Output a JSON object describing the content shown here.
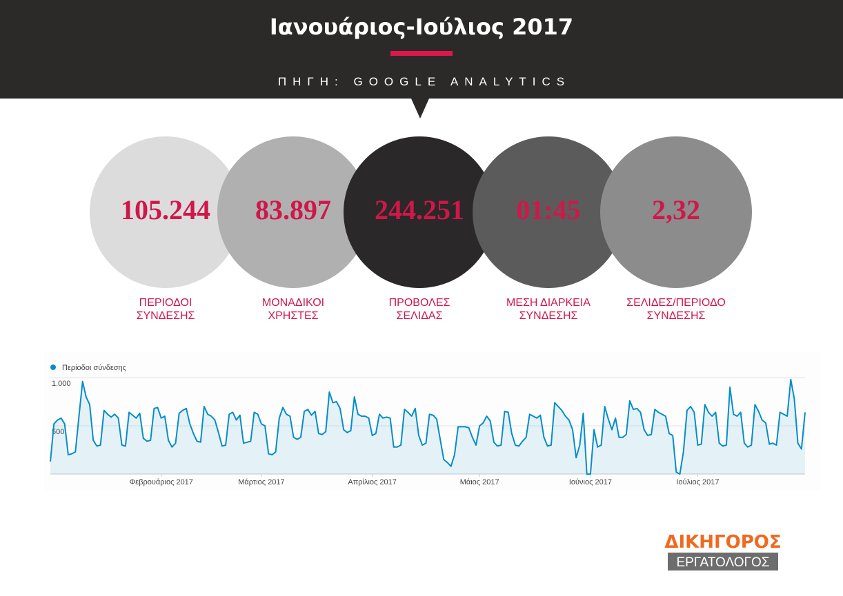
{
  "header": {
    "title": "Ιανουάριος-Ιούλιος 2017",
    "source": "ΠΗΓΗ: GOOGLE ANALYTICS"
  },
  "stats": [
    {
      "value": "105.244",
      "label": [
        "ΠΕΡΙΟΔΟΙ",
        "ΣΥΝΔΕΣΗΣ"
      ]
    },
    {
      "value": "83.897",
      "label": [
        "ΜΟΝΑΔΙΚΟΙ",
        "ΧΡΗΣΤΕΣ"
      ]
    },
    {
      "value": "244.251",
      "label": [
        "ΠΡΟΒΟΛΕΣ",
        "ΣΕΛΙΔΑΣ"
      ]
    },
    {
      "value": "01:45",
      "label": [
        "ΜΕΣΗ ΔΙΑΡΚΕΙΑ",
        "ΣΥΝΔΕΣΗΣ"
      ]
    },
    {
      "value": "2,32",
      "label": [
        "ΣΕΛΙΔΕΣ/ΠΕΡΙΟΔΟ",
        "ΣΥΝΔΕΣΗΣ"
      ]
    }
  ],
  "chart_data": {
    "type": "line",
    "series": [
      {
        "name": "Περίοδοι σύνδεσης",
        "color": "#058dc7",
        "values": [
          130,
          520,
          560,
          580,
          520,
          200,
          210,
          230,
          600,
          960,
          800,
          720,
          350,
          290,
          300,
          660,
          620,
          590,
          620,
          580,
          300,
          290,
          640,
          610,
          580,
          630,
          370,
          340,
          350,
          680,
          690,
          580,
          600,
          350,
          280,
          320,
          630,
          660,
          680,
          520,
          420,
          340,
          330,
          700,
          620,
          600,
          560,
          430,
          290,
          300,
          620,
          640,
          560,
          610,
          320,
          330,
          340,
          640,
          620,
          520,
          500,
          210,
          200,
          230,
          580,
          690,
          620,
          600,
          380,
          360,
          380,
          650,
          670,
          610,
          650,
          420,
          410,
          440,
          850,
          740,
          750,
          680,
          460,
          430,
          450,
          800,
          620,
          600,
          600,
          580,
          400,
          420,
          620,
          580,
          590,
          580,
          280,
          280,
          300,
          670,
          640,
          600,
          680,
          400,
          300,
          320,
          620,
          610,
          570,
          360,
          150,
          120,
          80,
          200,
          490,
          490,
          490,
          480,
          380,
          300,
          500,
          530,
          600,
          550,
          330,
          290,
          300,
          650,
          640,
          420,
          300,
          290,
          340,
          380,
          620,
          600,
          580,
          610,
          380,
          290,
          300,
          740,
          700,
          660,
          600,
          560,
          460,
          170,
          300,
          630,
          0,
          0,
          460,
          280,
          300,
          700,
          570,
          460,
          580,
          380,
          380,
          410,
          760,
          670,
          680,
          640,
          460,
          400,
          410,
          670,
          640,
          620,
          600,
          420,
          400,
          20,
          0,
          230,
          660,
          700,
          640,
          300,
          310,
          720,
          640,
          600,
          640,
          320,
          290,
          300,
          900,
          620,
          600,
          640,
          320,
          280,
          300,
          720,
          650,
          560,
          530,
          310,
          320,
          300,
          640,
          620,
          600,
          980,
          780,
          320,
          260,
          640
        ]
      }
    ],
    "xlim": [
      0,
      211
    ],
    "xticks": [
      {
        "value": 31,
        "label": "Φεβρουάριος 2017"
      },
      {
        "value": 59,
        "label": "Μάρτιος 2017"
      },
      {
        "value": 90,
        "label": "Απρίλιος 2017"
      },
      {
        "value": 120,
        "label": "Μάιος 2017"
      },
      {
        "value": 151,
        "label": "Ιούνιος 2017"
      },
      {
        "value": 181,
        "label": "Ιούλιος 2017"
      }
    ],
    "ylim": [
      0,
      1000
    ],
    "yticks": [
      {
        "value": 500,
        "label": "500"
      },
      {
        "value": 1000,
        "label": "1.000"
      }
    ],
    "grid": true
  },
  "logo": {
    "top": "ΔΙΚΗΓΟΡΟΣ",
    "bottom": "ΕΡΓΑΤΟΛΟΓΟΣ"
  }
}
